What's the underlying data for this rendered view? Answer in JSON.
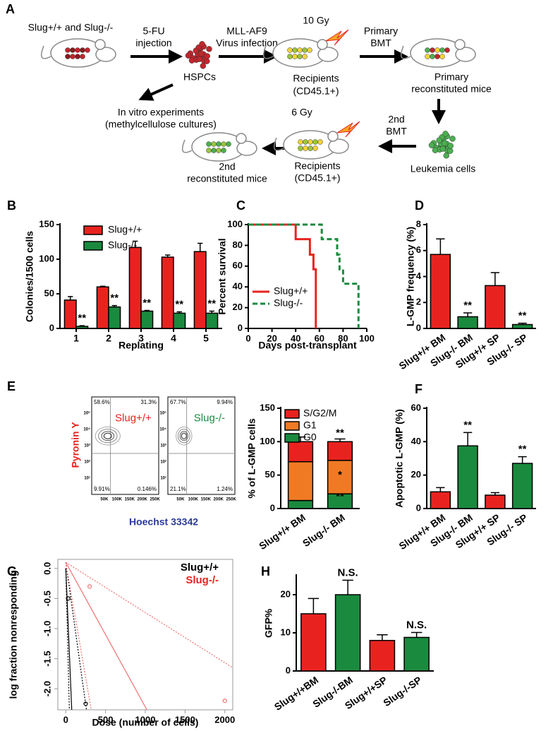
{
  "panel_a": {
    "label": "A",
    "start": "Slug+/+ and Slug-/-",
    "step1": [
      "5-FU",
      "injection"
    ],
    "hspcs": "HSPCs",
    "step2": [
      "MLL-AF9",
      "Virus infection"
    ],
    "dose1": "10 Gy",
    "recipients1": [
      "Recipients",
      "(CD45.1+)"
    ],
    "step3": [
      "Primary",
      "BMT"
    ],
    "primary": [
      "Primary",
      "reconstituted mice"
    ],
    "in_vitro": [
      "In vitro experiments",
      "(methylcellulose cultures)"
    ],
    "dose2": "6 Gy",
    "step4": [
      "2nd",
      "BMT"
    ],
    "leukemia": "Leukemia cells",
    "recipients2": [
      "Recipients",
      "(CD45.1+)"
    ],
    "secondary": [
      "2nd",
      "reconstituted mice"
    ]
  },
  "flow": {
    "y_label": "Pyronin Y",
    "x_label": "Hoechst 33342",
    "xticks": [
      "50K",
      "100K",
      "150K",
      "200K",
      "250K"
    ],
    "yticks": [
      "10¹",
      "10²",
      "10³",
      "10⁴",
      "10⁵"
    ],
    "plots": [
      {
        "name": "Slug+/+",
        "color": "#e8231f",
        "quadrants": [
          "58.6%",
          "31.3%",
          "9.91%",
          "0.146%"
        ]
      },
      {
        "name": "Slug-/-",
        "color": "#1a8a3e",
        "quadrants": [
          "67.7%",
          "9.94%",
          "21.1%",
          "1.24%"
        ]
      }
    ]
  },
  "chart_data": [
    {
      "type": "bar",
      "label": "B",
      "y_label": "Colonies/1500 cells",
      "x_label": "Replating",
      "categories": [
        "1",
        "2",
        "3",
        "4",
        "5"
      ],
      "ylim": [
        0,
        150
      ],
      "yticks": [
        0,
        50,
        100,
        150
      ],
      "series": [
        {
          "name": "Slug+/+",
          "color": "#e8231f",
          "values": [
            41,
            60,
            117,
            103,
            111
          ],
          "errors": [
            5,
            1,
            9,
            3,
            12
          ]
        },
        {
          "name": "Slug-/-",
          "color": "#1a8a3e",
          "values": [
            3,
            31,
            25,
            22,
            22
          ],
          "errors": [
            1,
            2,
            1,
            2,
            3
          ],
          "significance": [
            "**",
            "**",
            "**",
            "**",
            "**"
          ]
        }
      ]
    },
    {
      "type": "line",
      "label": "C",
      "y_label": "Percent survival",
      "x_label": "Days post-transplant",
      "xlim": [
        0,
        100
      ],
      "xticks": [
        0,
        20,
        40,
        60,
        80,
        100
      ],
      "ylim": [
        0,
        100
      ],
      "yticks": [
        0,
        20,
        40,
        60,
        80,
        100
      ],
      "series": [
        {
          "name": "Slug+/+",
          "color": "#e8231f",
          "dash": "solid",
          "x": [
            0,
            40,
            40,
            52,
            52,
            55,
            55,
            57,
            57
          ],
          "values": [
            100,
            100,
            86,
            86,
            71,
            71,
            57,
            57,
            0
          ]
        },
        {
          "name": "Slug-/-",
          "color": "#1a8a3e",
          "dash": "dashed",
          "x": [
            0,
            62,
            62,
            75,
            75,
            77,
            77,
            80,
            80,
            93,
            93
          ],
          "values": [
            100,
            100,
            86,
            86,
            71,
            71,
            57,
            57,
            43,
            43,
            0
          ]
        }
      ]
    },
    {
      "type": "bar",
      "label": "D",
      "y_label": "L-GMP frequency (%)",
      "categories": [
        "Slug+/+ BM",
        "Slug-/- BM",
        "Slug+/+ SP",
        "Slug-/- SP"
      ],
      "ylim": [
        0,
        8
      ],
      "yticks": [
        0,
        2,
        4,
        6,
        8
      ],
      "series": [
        {
          "colors": [
            "#e8231f",
            "#1a8a3e",
            "#e8231f",
            "#1a8a3e"
          ],
          "values": [
            5.7,
            0.9,
            3.3,
            0.3
          ],
          "errors": [
            1.2,
            0.3,
            1.0,
            0.1
          ],
          "significance": [
            null,
            "**",
            null,
            "**"
          ]
        }
      ]
    },
    {
      "type": "stacked_bar",
      "label": "E",
      "y_label": "% of L-GMP cells",
      "categories": [
        "Slug+/+ BM",
        "Slug-/- BM"
      ],
      "ylim": [
        0,
        150
      ],
      "yticks": [
        0,
        50,
        100,
        150
      ],
      "series": [
        {
          "name": "G0",
          "color": "#1a8a3e",
          "values": [
            12,
            22
          ],
          "errors": [
            3,
            4
          ],
          "significance": [
            null,
            "**"
          ]
        },
        {
          "name": "G1",
          "color": "#f07a24",
          "values": [
            58,
            50
          ],
          "errors": [
            6,
            4
          ],
          "significance": [
            null,
            "*"
          ]
        },
        {
          "name": "S/G2/M",
          "color": "#e8231f",
          "values": [
            30,
            28
          ],
          "errors": [
            7,
            4
          ],
          "significance": [
            null,
            "**"
          ]
        }
      ]
    },
    {
      "type": "bar",
      "label": "F",
      "y_label": "Apoptotic L-GMP (%)",
      "categories": [
        "Slug+/+ BM",
        "Slug-/- BM",
        "Slug+/+ SP",
        "Slug-/- SP"
      ],
      "ylim": [
        0,
        60
      ],
      "yticks": [
        0,
        20,
        40,
        60
      ],
      "series": [
        {
          "colors": [
            "#e8231f",
            "#1a8a3e",
            "#e8231f",
            "#1a8a3e"
          ],
          "values": [
            10,
            37.5,
            8,
            27
          ],
          "errors": [
            2.5,
            8,
            1.5,
            4
          ],
          "significance": [
            null,
            "**",
            null,
            "**"
          ]
        }
      ]
    },
    {
      "type": "elda",
      "label": "G",
      "y_label": "log fraction nonresponding",
      "x_label": "Dose (number of cells)",
      "xlim": [
        -100,
        2100
      ],
      "xticks": [
        0,
        500,
        1000,
        1500,
        2000
      ],
      "ylim": [
        -2.35,
        0.15
      ],
      "yticks": [
        {
          "value": 0,
          "label": "0.0"
        },
        -0.5,
        {
          "value": -1,
          "label": "-1.0"
        },
        -1.5,
        {
          "value": -2,
          "label": "-2.0"
        }
      ],
      "series": [
        {
          "name": "Slug+/+",
          "color": "#000000",
          "lines": [
            {
              "style": "solid",
              "x": [
                0,
                75
              ],
              "values": [
                0,
                -2.35
              ]
            },
            {
              "style": "dotted",
              "x": [
                0,
                45
              ],
              "values": [
                0,
                -2.35
              ]
            },
            {
              "style": "dotted",
              "x": [
                0,
                260
              ],
              "values": [
                0.1,
                -2.35
              ]
            }
          ],
          "points": {
            "x": [
              30,
              250
            ],
            "values": [
              -0.5,
              -2.25
            ]
          }
        },
        {
          "name": "Slug-/-",
          "color": "#e8231f",
          "lines": [
            {
              "style": "solid",
              "x": [
                0,
                1020
              ],
              "values": [
                0.1,
                -2.35
              ]
            },
            {
              "style": "dotted",
              "x": [
                0,
                320
              ],
              "values": [
                0.1,
                -2.35
              ]
            },
            {
              "style": "dotted",
              "x": [
                0,
                2100
              ],
              "values": [
                0.1,
                -1.65
              ]
            }
          ],
          "points": {
            "x": [
              300,
              2000
            ],
            "values": [
              -0.3,
              -2.2
            ]
          }
        }
      ]
    },
    {
      "type": "bar",
      "label": "H",
      "y_label": "GFP%",
      "categories": [
        "Slug+/+BM",
        "Slug-/-BM",
        "Slug+/+SP",
        "Slug-/-SP"
      ],
      "ylim": [
        0,
        25
      ],
      "yticks": [
        0,
        10,
        20
      ],
      "series": [
        {
          "colors": [
            "#e8231f",
            "#1a8a3e",
            "#e8231f",
            "#1a8a3e"
          ],
          "values": [
            15,
            20,
            8,
            8.8
          ],
          "errors": [
            4,
            3.8,
            1.5,
            1.3
          ],
          "significance": [
            null,
            "N.S.",
            null,
            "N.S."
          ]
        }
      ]
    }
  ]
}
